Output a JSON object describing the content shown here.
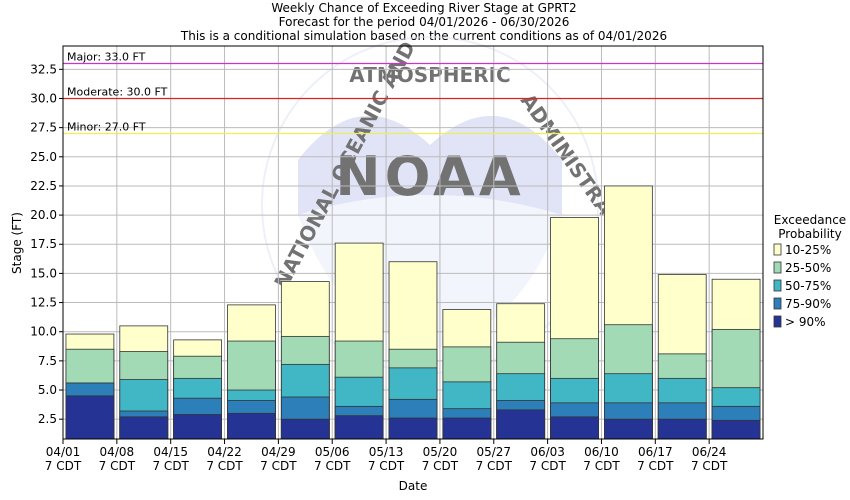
{
  "chart_data": {
    "type": "bar",
    "title": [
      "Weekly Chance of Exceeding River Stage at GPRT2",
      "Forecast for the period 04/01/2026 - 06/30/2026",
      "This is a conditional simulation based on the current conditions as of 04/01/2026"
    ],
    "xlabel": "Date",
    "ylabel": "Stage (FT)",
    "ylim": [
      0.8,
      34.5
    ],
    "yticks": [
      "2.5",
      "5.0",
      "7.5",
      "10.0",
      "12.5",
      "15.0",
      "17.5",
      "20.0",
      "22.5",
      "25.0",
      "27.5",
      "30.0",
      "32.5"
    ],
    "grid": true,
    "categories": [
      [
        "04/01",
        "7 CDT"
      ],
      [
        "04/08",
        "7 CDT"
      ],
      [
        "04/15",
        "7 CDT"
      ],
      [
        "04/22",
        "7 CDT"
      ],
      [
        "04/29",
        "7 CDT"
      ],
      [
        "05/06",
        "7 CDT"
      ],
      [
        "05/13",
        "7 CDT"
      ],
      [
        "05/20",
        "7 CDT"
      ],
      [
        "05/27",
        "7 CDT"
      ],
      [
        "06/03",
        "7 CDT"
      ],
      [
        "06/10",
        "7 CDT"
      ],
      [
        "06/17",
        "7 CDT"
      ],
      [
        "06/24",
        "7 CDT"
      ]
    ],
    "series": [
      {
        "name": "> 90%",
        "color": "#253494",
        "values": [
          4.5,
          2.7,
          2.9,
          3.0,
          2.5,
          2.8,
          2.6,
          2.6,
          3.3,
          2.7,
          2.5,
          2.5,
          2.4
        ]
      },
      {
        "name": "75-90%",
        "color": "#2c7fb8",
        "values": [
          5.6,
          3.2,
          4.3,
          4.1,
          4.4,
          3.6,
          4.2,
          3.4,
          4.1,
          3.9,
          3.9,
          3.9,
          3.6
        ]
      },
      {
        "name": "50-75%",
        "color": "#41b6c4",
        "values": [
          5.6,
          5.9,
          6.0,
          5.0,
          7.2,
          6.1,
          6.9,
          5.7,
          6.4,
          6.0,
          6.4,
          6.0,
          5.2
        ]
      },
      {
        "name": "25-50%",
        "color": "#a1dab4",
        "values": [
          8.5,
          8.3,
          7.9,
          9.2,
          9.6,
          9.2,
          8.5,
          8.7,
          9.1,
          9.4,
          10.6,
          8.1,
          10.2
        ]
      },
      {
        "name": "10-25%",
        "color": "#ffffcc",
        "values": [
          9.8,
          10.5,
          9.3,
          12.3,
          14.3,
          17.6,
          16.0,
          11.9,
          12.4,
          19.8,
          22.5,
          14.9,
          14.5
        ]
      }
    ],
    "threshold_lines": [
      {
        "label": "Major: 33.0 FT",
        "value": 33.0,
        "color": "#cc33cc"
      },
      {
        "label": "Moderate: 30.0 FT",
        "value": 30.0,
        "color": "#dd2222"
      },
      {
        "label": "Minor: 27.0 FT",
        "value": 27.0,
        "color": "#eeee55"
      }
    ],
    "legend": {
      "title": [
        "Exceedance",
        "Probability"
      ],
      "placement": "right",
      "entries": [
        {
          "label": "10-25%",
          "color": "#ffffcc"
        },
        {
          "label": "25-50%",
          "color": "#a1dab4"
        },
        {
          "label": "50-75%",
          "color": "#41b6c4"
        },
        {
          "label": "75-90%",
          "color": "#2c7fb8"
        },
        {
          "label": "> 90%",
          "color": "#253494"
        }
      ]
    },
    "watermark": "NATIONAL OCEANIC AND ATMOSPHERIC ADMINISTRATION NOAA"
  }
}
